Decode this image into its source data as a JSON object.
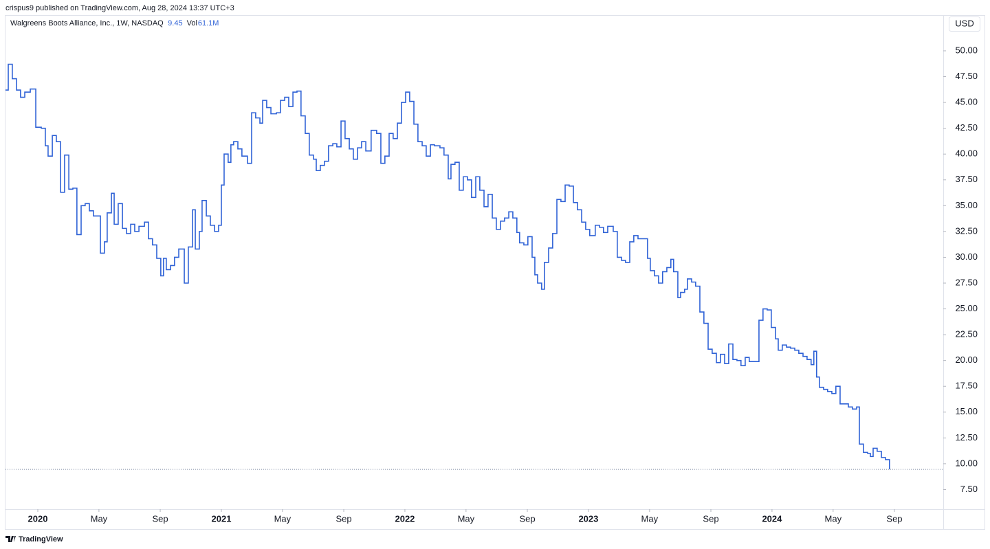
{
  "chart_data": {
    "type": "step-line",
    "header": "crispus9 published on TradingView.com, Aug 28, 2024 13:37 UTC+3",
    "title": "Walgreens Boots Alliance, Inc., 1W, NASDAQ",
    "last_price": 9.45,
    "volume_label": "Vol",
    "volume": "61.1M",
    "currency": "USD",
    "footer": "TradingView",
    "color": "#2f62d6",
    "series": [
      {
        "name": "Walgreens Boots Alliance, Inc.",
        "color": "#2f62d6",
        "x": [
          2019.824,
          2019.839,
          2019.861,
          2019.884,
          2019.906,
          2019.929,
          2019.959,
          2019.989,
          2020.019,
          2020.041,
          2020.056,
          2020.079,
          2020.101,
          2020.124,
          2020.146,
          2020.169,
          2020.191,
          2020.213,
          2020.236,
          2020.258,
          2020.281,
          2020.303,
          2020.341,
          2020.363,
          2020.378,
          2020.401,
          2020.416,
          2020.438,
          2020.461,
          2020.483,
          2020.506,
          2020.528,
          2020.551,
          2020.581,
          2020.603,
          2020.625,
          2020.648,
          2020.67,
          2020.685,
          2020.7,
          2020.723,
          2020.745,
          2020.768,
          2020.798,
          2020.82,
          2020.843,
          2020.858,
          2020.88,
          2020.895,
          2020.918,
          2020.94,
          2020.963,
          2020.985,
          2021.0,
          2021.015,
          2021.037,
          2021.052,
          2021.067,
          2021.09,
          2021.112,
          2021.142,
          2021.165,
          2021.187,
          2021.21,
          2021.225,
          2021.247,
          2021.27,
          2021.3,
          2021.322,
          2021.345,
          2021.367,
          2021.39,
          2021.412,
          2021.434,
          2021.457,
          2021.479,
          2021.502,
          2021.517,
          2021.539,
          2021.562,
          2021.584,
          2021.607,
          2021.629,
          2021.652,
          2021.674,
          2021.697,
          2021.719,
          2021.742,
          2021.764,
          2021.787,
          2021.816,
          2021.846,
          2021.869,
          2021.891,
          2021.914,
          2021.936,
          2021.959,
          2021.981,
          2022.004,
          2022.026,
          2022.049,
          2022.071,
          2022.094,
          2022.116,
          2022.139,
          2022.161,
          2022.191,
          2022.213,
          2022.236,
          2022.251,
          2022.273,
          2022.296,
          2022.318,
          2022.341,
          2022.363,
          2022.386,
          2022.408,
          2022.431,
          2022.453,
          2022.476,
          2022.498,
          2022.521,
          2022.543,
          2022.566,
          2022.588,
          2022.61,
          2022.625,
          2022.648,
          2022.67,
          2022.693,
          2022.708,
          2022.723,
          2022.745,
          2022.76,
          2022.783,
          2022.805,
          2022.828,
          2022.85,
          2022.873,
          2022.895,
          2022.918,
          2022.94,
          2022.963,
          2022.985,
          2023.007,
          2023.037,
          2023.06,
          2023.082,
          2023.105,
          2023.135,
          2023.157,
          2023.18,
          2023.202,
          2023.225,
          2023.247,
          2023.27,
          2023.307,
          2023.322,
          2023.337,
          2023.36,
          2023.382,
          2023.404,
          2023.427,
          2023.449,
          2023.464,
          2023.487,
          2023.502,
          2023.524,
          2023.539,
          2023.562,
          2023.584,
          2023.607,
          2023.629,
          2023.652,
          2023.674,
          2023.697,
          2023.719,
          2023.742,
          2023.764,
          2023.787,
          2023.809,
          2023.831,
          2023.854,
          2023.876,
          2023.906,
          2023.929,
          2023.951,
          2023.974,
          2023.996,
          2024.019,
          2024.034,
          2024.056,
          2024.079,
          2024.101,
          2024.124,
          2024.146,
          2024.169,
          2024.191,
          2024.213,
          2024.228,
          2024.243,
          2024.258,
          2024.281,
          2024.303,
          2024.326,
          2024.348,
          2024.371,
          2024.393,
          2024.416,
          2024.438,
          2024.461,
          2024.476,
          2024.498,
          2024.521,
          2024.536,
          2024.551,
          2024.573,
          2024.596,
          2024.618,
          2024.64
        ],
        "values": [
          46.2,
          48.7,
          47.3,
          46.2,
          45.5,
          46.0,
          46.3,
          42.6,
          42.5,
          40.8,
          39.8,
          41.8,
          41.2,
          36.3,
          39.9,
          36.6,
          36.7,
          32.2,
          35.0,
          35.2,
          34.5,
          34.0,
          30.4,
          31.5,
          34.3,
          36.2,
          33.2,
          35.2,
          32.8,
          32.3,
          33.2,
          32.5,
          33.0,
          33.4,
          31.8,
          31.2,
          29.9,
          28.2,
          29.9,
          28.8,
          29.2,
          30.0,
          30.8,
          27.5,
          31.0,
          34.6,
          30.8,
          32.5,
          35.5,
          34.0,
          33.1,
          32.5,
          33.1,
          37.0,
          40.0,
          39.2,
          40.9,
          41.2,
          40.5,
          39.8,
          39.1,
          44.0,
          43.5,
          43.0,
          45.2,
          44.5,
          43.9,
          44.0,
          45.2,
          45.5,
          44.6,
          46.0,
          46.1,
          43.7,
          42.0,
          39.9,
          39.5,
          38.4,
          38.9,
          39.3,
          40.8,
          41.0,
          40.7,
          43.2,
          41.5,
          40.5,
          39.5,
          40.6,
          41.2,
          40.3,
          42.3,
          42.0,
          39.1,
          39.8,
          42.0,
          41.5,
          43.0,
          45.0,
          46.0,
          45.1,
          42.9,
          41.2,
          40.8,
          39.8,
          40.9,
          40.8,
          40.6,
          39.9,
          37.6,
          39.0,
          39.2,
          36.5,
          37.8,
          37.5,
          35.8,
          37.8,
          36.5,
          34.9,
          36.1,
          33.8,
          32.7,
          33.5,
          33.8,
          34.4,
          33.8,
          32.4,
          31.4,
          31.2,
          32.0,
          30.0,
          28.3,
          27.5,
          26.9,
          29.5,
          30.9,
          32.3,
          35.6,
          35.4,
          37.0,
          36.9,
          35.3,
          34.6,
          33.4,
          32.7,
          32.1,
          33.1,
          32.9,
          32.4,
          33.0,
          32.5,
          30.0,
          29.7,
          29.5,
          31.5,
          32.1,
          31.8,
          31.8,
          29.9,
          28.7,
          28.2,
          27.5,
          28.6,
          29.0,
          29.8,
          28.6,
          26.1,
          26.6,
          26.9,
          27.9,
          27.6,
          27.2,
          24.7,
          23.6,
          21.1,
          20.7,
          19.8,
          20.6,
          19.7,
          21.6,
          20.1,
          20.0,
          19.5,
          20.3,
          19.9,
          19.9,
          23.9,
          25.0,
          24.9,
          23.2,
          22.1,
          21.0,
          21.5,
          21.3,
          21.2,
          21.0,
          20.7,
          20.4,
          20.1,
          19.6,
          20.9,
          18.4,
          17.4,
          17.2,
          17.0,
          16.8,
          17.5,
          15.8,
          15.8,
          15.5,
          15.3,
          15.5,
          11.9,
          11.1,
          11.0,
          10.7,
          11.5,
          11.2,
          10.6,
          10.4,
          9.45
        ]
      }
    ],
    "xlim": [
      2019.824,
      2024.933
    ],
    "xticks": [
      2020,
      {
        "value": 2020.333,
        "label": "May"
      },
      {
        "value": 2020.667,
        "label": "Sep"
      },
      2021,
      {
        "value": 2021.333,
        "label": "May"
      },
      {
        "value": 2021.667,
        "label": "Sep"
      },
      2022,
      {
        "value": 2022.333,
        "label": "May"
      },
      {
        "value": 2022.667,
        "label": "Sep"
      },
      2023,
      {
        "value": 2023.333,
        "label": "May"
      },
      {
        "value": 2023.667,
        "label": "Sep"
      },
      2024,
      {
        "value": 2024.333,
        "label": "May"
      },
      {
        "value": 2024.667,
        "label": "Sep"
      }
    ],
    "ylim": [
      5.6,
      53.46
    ],
    "yticks": [
      {
        "value": 7.5,
        "label": "7.50"
      },
      {
        "value": 10,
        "label": "10.00"
      },
      {
        "value": 12.5,
        "label": "12.50"
      },
      {
        "value": 15,
        "label": "15.00"
      },
      {
        "value": 17.5,
        "label": "17.50"
      },
      {
        "value": 20,
        "label": "20.00"
      },
      {
        "value": 22.5,
        "label": "22.50"
      },
      {
        "value": 25,
        "label": "25.00"
      },
      {
        "value": 27.5,
        "label": "27.50"
      },
      {
        "value": 30,
        "label": "30.00"
      },
      {
        "value": 32.5,
        "label": "32.50"
      },
      {
        "value": 35,
        "label": "35.00"
      },
      {
        "value": 37.5,
        "label": "37.50"
      },
      {
        "value": 40,
        "label": "40.00"
      },
      {
        "value": 42.5,
        "label": "42.50"
      },
      {
        "value": 45,
        "label": "45.00"
      },
      {
        "value": 47.5,
        "label": "47.50"
      },
      {
        "value": 50,
        "label": "50.00"
      }
    ],
    "grid": false
  }
}
